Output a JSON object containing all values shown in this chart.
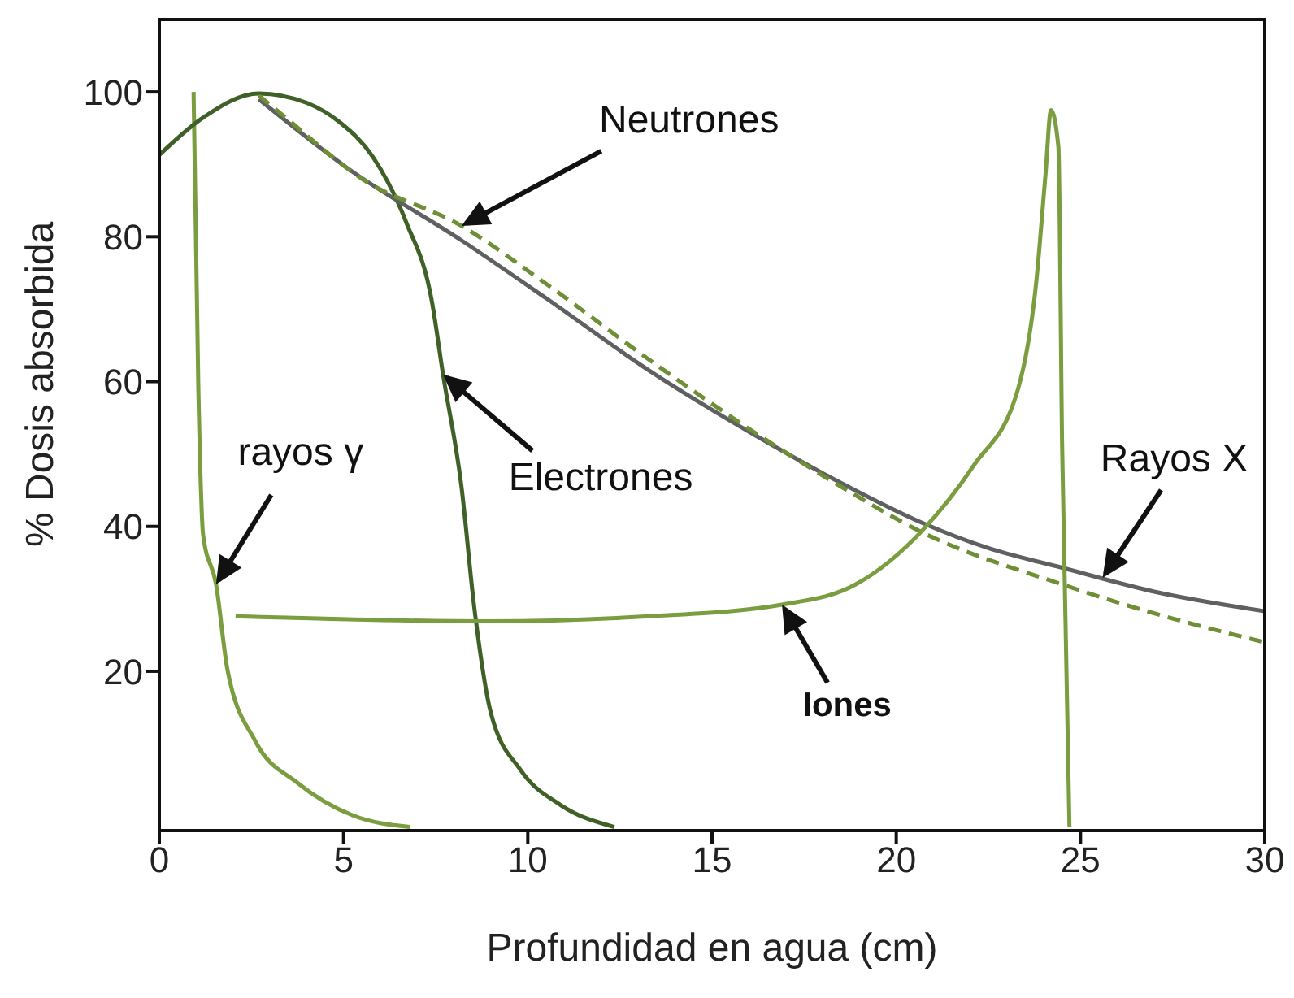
{
  "chart_data": {
    "type": "line",
    "xlabel": "Profundidad en agua (cm)",
    "ylabel": "% Dosis absorbida",
    "xlim": [
      0,
      30
    ],
    "xticks": [
      0,
      5,
      10,
      15,
      20,
      25,
      30
    ],
    "ylim": [
      -2,
      110
    ],
    "yticks": [
      20,
      40,
      60,
      80,
      100
    ],
    "grid": false,
    "series": [
      {
        "color": "#7a9e3f",
        "x": [
          0.93,
          1.06,
          1.19,
          1.54,
          1.85,
          2.6,
          3.75,
          5.25,
          6.8
        ],
        "values": [
          100,
          59,
          38.8,
          32,
          20.2,
          10.4,
          4.6,
          0.1,
          -1.5
        ]
      },
      {
        "color": "#3f6027",
        "x": [
          0,
          1.2,
          2.7,
          4.0,
          4.9,
          5.8,
          6.7,
          7.4,
          7.7,
          8.2,
          8.55,
          9.0,
          9.8,
          10.9,
          12.35
        ],
        "values": [
          91.3,
          96.5,
          99.8,
          98.5,
          95.8,
          91,
          82,
          71,
          61,
          45.5,
          28.7,
          14.2,
          6.4,
          1.5,
          -1.5
        ]
      },
      {
        "color": "#5f6062",
        "x": [
          2.7,
          5.1,
          8.2,
          10.5,
          13.3,
          16.3,
          18.5,
          20.7,
          22.5,
          24.5,
          27,
          30
        ],
        "values": [
          99,
          89.5,
          79.5,
          71.5,
          61.5,
          52.2,
          46,
          40.5,
          37,
          34.3,
          31,
          28.3
        ]
      },
      {
        "color": "#6e8f35",
        "line_style": "dashed",
        "x": [
          2.7,
          3.3,
          5.5,
          8.2,
          10.5,
          13.3,
          16.3,
          18.5,
          20.7,
          24.5,
          27,
          30
        ],
        "values": [
          99.5,
          97,
          88,
          81.5,
          73.5,
          63,
          52.5,
          45.5,
          39.2,
          32,
          28,
          24
        ]
      },
      {
        "color": "#7a9e3f",
        "x": [
          2.07,
          8.9,
          13.3,
          16.9,
          18.9,
          20.7,
          22.1,
          23.3,
          23.8,
          24.05,
          24.2,
          24.4,
          24.5,
          24.7
        ],
        "values": [
          27.6,
          26.9,
          27.6,
          29.2,
          32,
          39.4,
          48.4,
          58.9,
          73.8,
          88.6,
          97.5,
          92.4,
          51.5,
          -1.5
        ]
      }
    ],
    "annotations": [
      {
        "text": "Neutrones",
        "x": 8.2,
        "y": 81.5
      },
      {
        "text": "Rayos X",
        "x": 25.6,
        "y": 32.9
      },
      {
        "text": "rayos γ",
        "x": 1.54,
        "y": 32
      },
      {
        "text": "Electrones",
        "x": 7.7,
        "y": 61
      },
      {
        "text": "Iones",
        "x": 16.9,
        "y": 29.2
      }
    ]
  }
}
